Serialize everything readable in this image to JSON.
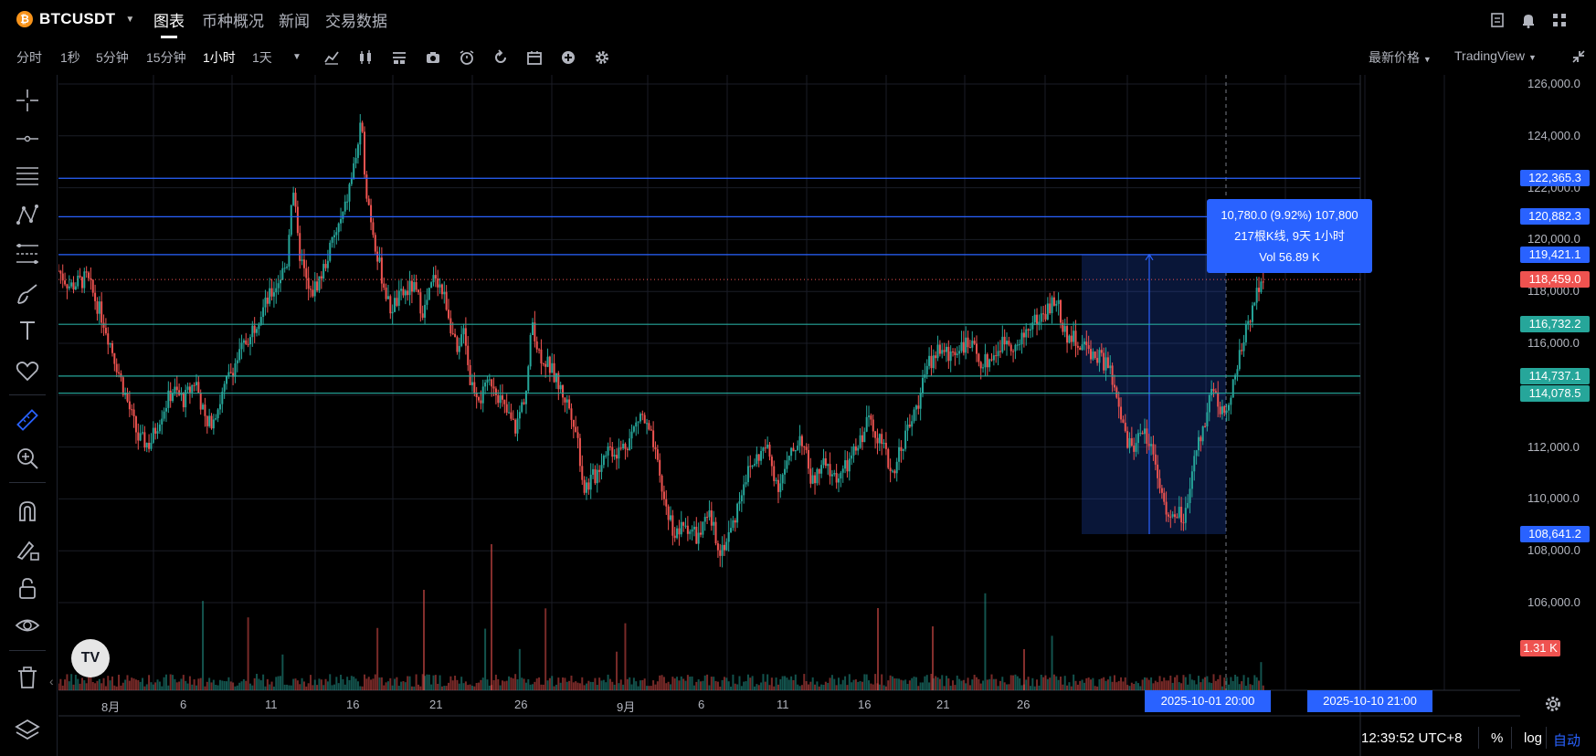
{
  "header": {
    "symbol": "BTCUSDT",
    "symbol_icon": "bitcoin-icon",
    "tabs": [
      "图表",
      "币种概况",
      "新闻",
      "交易数据"
    ],
    "active_tab": "图表",
    "right_icons": [
      "notes-icon",
      "alert-bell-icon",
      "apps-grid-icon"
    ]
  },
  "toolbar": {
    "intervals": [
      "分时",
      "1秒",
      "5分钟",
      "15分钟",
      "1小时",
      "1天"
    ],
    "active_interval": "1小时",
    "tools": [
      "indicator-icon",
      "candle-style-icon",
      "layout-icon",
      "camera-icon",
      "alarm-icon",
      "replay-icon",
      "calendar-icon",
      "add-icon",
      "gear-icon"
    ],
    "price_type": "最新价格",
    "platform": "TradingView"
  },
  "left_toolbar": {
    "tools": [
      "crosshair-icon",
      "horizontal-line-icon",
      "multi-line-icon",
      "pattern-icon",
      "fib-icon",
      "brush-icon",
      "text-icon",
      "heart-icon",
      "ruler-icon",
      "zoom-icon",
      "magnet-icon",
      "lock-draw-icon",
      "lock-icon",
      "eye-icon",
      "trash-icon",
      "layers-icon"
    ]
  },
  "chart_data": {
    "type": "candlestick",
    "symbol": "BTCUSDT",
    "interval": "1小时",
    "price_axis": [
      "126,000.0",
      "124,000.0",
      "122,000.0",
      "120,000.0",
      "118,000.0",
      "116,000.0",
      "114,000.0",
      "112,000.0",
      "110,000.0",
      "108,000.0",
      "106,000.0"
    ],
    "date_axis": [
      "8月",
      "6",
      "11",
      "16",
      "21",
      "26",
      "9月",
      "6",
      "11",
      "16",
      "21",
      "26",
      "6",
      "16"
    ],
    "ylim": [
      105000,
      127000
    ],
    "horizontal_lines": [
      {
        "price": 122365.3,
        "label": "122,365.3",
        "color": "#2962ff"
      },
      {
        "price": 120882.3,
        "label": "120,882.3",
        "color": "#2962ff"
      },
      {
        "price": 119421.1,
        "label": "119,421.1",
        "color": "#2962ff"
      },
      {
        "price": 116732.2,
        "label": "116,732.2",
        "color": "#26a69a"
      },
      {
        "price": 114737.1,
        "label": "114,737.1",
        "color": "#26a69a"
      },
      {
        "price": 114078.5,
        "label": "114,078.5",
        "color": "#26a69a"
      }
    ],
    "last_price": {
      "price": 118459.0,
      "label": "118,459.0",
      "color": "#ef5350"
    },
    "measure_low": {
      "price": 108641.2,
      "label": "108,641.2"
    },
    "volume_label": "1.31 K",
    "measure_tooltip": [
      "10,780.0 (9.92%) 107,800",
      "217根K线, 9天 1小时",
      "Vol 56.89 K"
    ],
    "date_badges": [
      "2025-10-01   20:00",
      "2025-10-10   21:00"
    ],
    "price_path": [
      [
        0,
        118800
      ],
      [
        0.01,
        118200
      ],
      [
        0.025,
        118500
      ],
      [
        0.04,
        116800
      ],
      [
        0.05,
        115300
      ],
      [
        0.06,
        113800
      ],
      [
        0.07,
        112300
      ],
      [
        0.08,
        112100
      ],
      [
        0.09,
        113300
      ],
      [
        0.1,
        114200
      ],
      [
        0.11,
        113800
      ],
      [
        0.12,
        114600
      ],
      [
        0.13,
        112700
      ],
      [
        0.14,
        113600
      ],
      [
        0.15,
        114800
      ],
      [
        0.16,
        115700
      ],
      [
        0.17,
        116600
      ],
      [
        0.18,
        117400
      ],
      [
        0.19,
        118200
      ],
      [
        0.2,
        119100
      ],
      [
        0.205,
        122300
      ],
      [
        0.21,
        119700
      ],
      [
        0.22,
        117800
      ],
      [
        0.23,
        118600
      ],
      [
        0.24,
        119900
      ],
      [
        0.25,
        121000
      ],
      [
        0.26,
        123100
      ],
      [
        0.265,
        124400
      ],
      [
        0.27,
        121800
      ],
      [
        0.28,
        119200
      ],
      [
        0.29,
        117300
      ],
      [
        0.3,
        117800
      ],
      [
        0.31,
        118200
      ],
      [
        0.32,
        117200
      ],
      [
        0.33,
        118700
      ],
      [
        0.34,
        117500
      ],
      [
        0.35,
        115300
      ],
      [
        0.355,
        116900
      ],
      [
        0.36,
        114600
      ],
      [
        0.37,
        113900
      ],
      [
        0.38,
        114600
      ],
      [
        0.39,
        113500
      ],
      [
        0.4,
        112700
      ],
      [
        0.41,
        114300
      ],
      [
        0.415,
        116900
      ],
      [
        0.42,
        115700
      ],
      [
        0.43,
        115100
      ],
      [
        0.44,
        114200
      ],
      [
        0.45,
        113300
      ],
      [
        0.455,
        112200
      ],
      [
        0.46,
        110400
      ],
      [
        0.47,
        110900
      ],
      [
        0.48,
        112000
      ],
      [
        0.49,
        111800
      ],
      [
        0.5,
        112300
      ],
      [
        0.51,
        113300
      ],
      [
        0.52,
        112200
      ],
      [
        0.53,
        110000
      ],
      [
        0.54,
        108600
      ],
      [
        0.55,
        109000
      ],
      [
        0.56,
        108500
      ],
      [
        0.57,
        109300
      ],
      [
        0.58,
        108000
      ],
      [
        0.59,
        108900
      ],
      [
        0.6,
        110700
      ],
      [
        0.61,
        111500
      ],
      [
        0.62,
        112000
      ],
      [
        0.63,
        110500
      ],
      [
        0.64,
        111500
      ],
      [
        0.65,
        112500
      ],
      [
        0.66,
        110600
      ],
      [
        0.67,
        111300
      ],
      [
        0.68,
        110800
      ],
      [
        0.69,
        111200
      ],
      [
        0.7,
        112000
      ],
      [
        0.71,
        113200
      ],
      [
        0.72,
        112200
      ],
      [
        0.73,
        111000
      ],
      [
        0.74,
        112300
      ],
      [
        0.75,
        113300
      ],
      [
        0.76,
        115000
      ],
      [
        0.77,
        115800
      ],
      [
        0.78,
        115500
      ],
      [
        0.79,
        116000
      ],
      [
        0.8,
        115800
      ],
      [
        0.81,
        115200
      ],
      [
        0.82,
        115600
      ],
      [
        0.83,
        116200
      ],
      [
        0.84,
        115800
      ],
      [
        0.85,
        116700
      ],
      [
        0.86,
        117000
      ],
      [
        0.87,
        117500
      ],
      [
        0.875,
        117600
      ],
      [
        0.88,
        116500
      ],
      [
        0.89,
        116100
      ],
      [
        0.9,
        115800
      ],
      [
        0.91,
        115500
      ],
      [
        0.92,
        115100
      ],
      [
        0.925,
        114000
      ],
      [
        0.93,
        113200
      ],
      [
        0.935,
        112300
      ],
      [
        0.94,
        111900
      ],
      [
        0.945,
        112400
      ],
      [
        0.95,
        112800
      ],
      [
        0.955,
        112100
      ],
      [
        0.96,
        111700
      ],
      [
        0.965,
        110500
      ],
      [
        0.97,
        109300
      ],
      [
        0.975,
        109100
      ],
      [
        0.98,
        109500
      ],
      [
        0.985,
        109200
      ],
      [
        0.99,
        109700
      ],
      [
        0.995,
        111800
      ],
      [
        1.0,
        112300
      ],
      [
        1.01,
        114300
      ],
      [
        1.02,
        113200
      ],
      [
        1.03,
        114600
      ],
      [
        1.04,
        116500
      ],
      [
        1.05,
        118200
      ],
      [
        1.055,
        118600
      ]
    ]
  },
  "status": {
    "clock": "12:39:52 UTC+8",
    "pct": "%",
    "log": "log",
    "auto": "自动"
  },
  "colors": {
    "up": "#26a69a",
    "down": "#ef5350",
    "accent": "#2962ff",
    "grid": "#1a1d26",
    "background": "#000000"
  }
}
